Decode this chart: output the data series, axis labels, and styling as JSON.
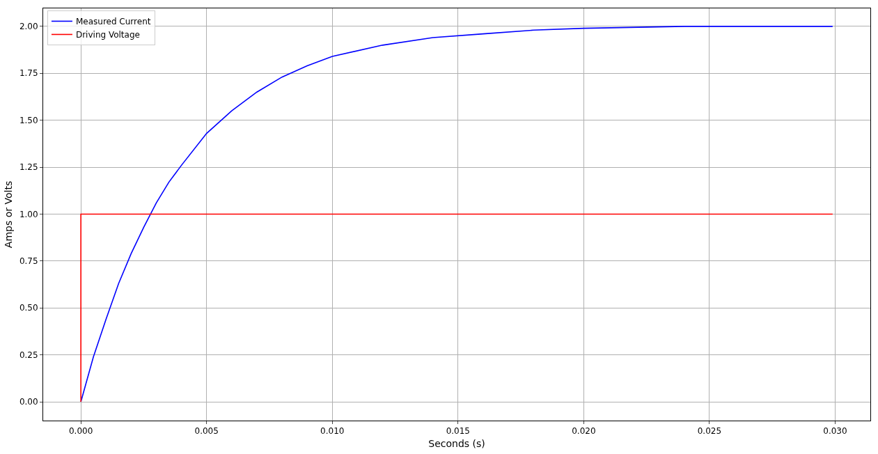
{
  "chart_data": {
    "type": "line",
    "xlabel": "Seconds (s)",
    "ylabel": "Amps or Volts",
    "series": [
      {
        "name": "Measured Current",
        "color": "#0000ff",
        "x": [
          0,
          0.0005,
          0.001,
          0.0015,
          0.002,
          0.0025,
          0.003,
          0.0035,
          0.004,
          0.005,
          0.006,
          0.007,
          0.008,
          0.009,
          0.01,
          0.012,
          0.014,
          0.016,
          0.018,
          0.02,
          0.024,
          0.0299
        ],
        "values": [
          0,
          0.24,
          0.44,
          0.63,
          0.79,
          0.93,
          1.06,
          1.17,
          1.26,
          1.43,
          1.55,
          1.65,
          1.73,
          1.79,
          1.84,
          1.9,
          1.94,
          1.96,
          1.98,
          1.99,
          2.0,
          2.0
        ]
      },
      {
        "name": "Driving Voltage",
        "color": "#ff0000",
        "x": [
          0,
          0,
          0.0299
        ],
        "values": [
          0,
          1,
          1
        ]
      }
    ],
    "xlim": [
      -0.0015,
      0.0314
    ],
    "ylim": [
      -0.1,
      2.096
    ],
    "xticks": [
      {
        "value": 0,
        "label": "0.000"
      },
      {
        "value": 0.005,
        "label": "0.005"
      },
      {
        "value": 0.01,
        "label": "0.010"
      },
      {
        "value": 0.015,
        "label": "0.015"
      },
      {
        "value": 0.02,
        "label": "0.020"
      },
      {
        "value": 0.025,
        "label": "0.025"
      },
      {
        "value": 0.03,
        "label": "0.030"
      }
    ],
    "yticks": [
      {
        "value": 0,
        "label": "0.00"
      },
      {
        "value": 0.25,
        "label": "0.25"
      },
      {
        "value": 0.5,
        "label": "0.50"
      },
      {
        "value": 0.75,
        "label": "0.75"
      },
      {
        "value": 1,
        "label": "1.00"
      },
      {
        "value": 1.25,
        "label": "1.25"
      },
      {
        "value": 1.5,
        "label": "1.50"
      },
      {
        "value": 1.75,
        "label": "1.75"
      },
      {
        "value": 2,
        "label": "2.00"
      }
    ],
    "grid": true,
    "legend": "top left",
    "line_style": "solid",
    "marker": "none"
  }
}
